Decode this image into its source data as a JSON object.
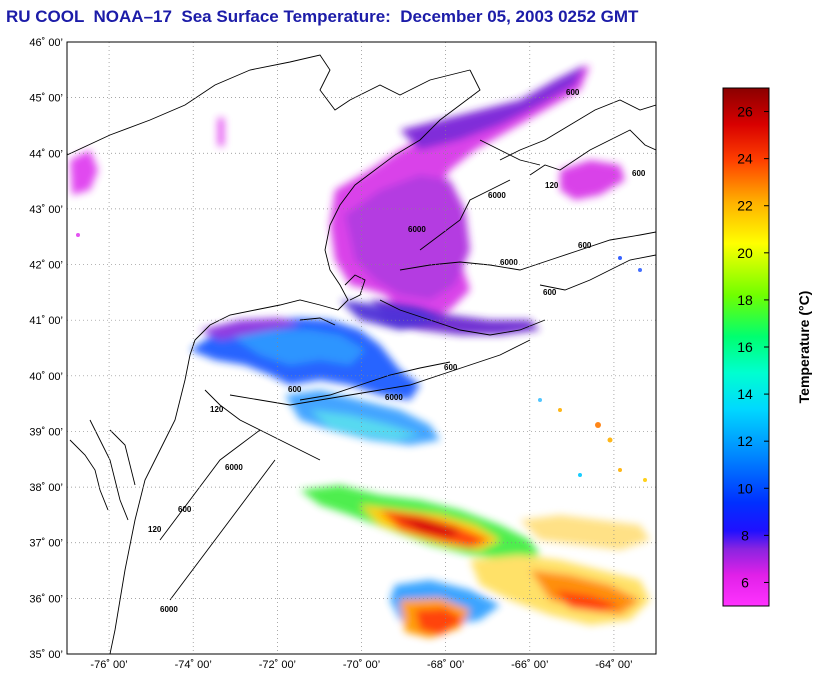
{
  "title": "RU COOL  NOAA–17  Sea Surface Temperature:  December 05, 2003 0252 GMT",
  "map": {
    "lat_labels": [
      "46˚ 00’",
      "45˚ 00’",
      "44˚ 00’",
      "43˚ 00’",
      "42˚ 00’",
      "41˚ 00’",
      "40˚ 00’",
      "39˚ 00’",
      "38˚ 00’",
      "37˚ 00’",
      "36˚ 00’",
      "35˚ 00’"
    ],
    "lon_labels": [
      "-76˚ 00’",
      "-74˚ 00’",
      "-72˚ 00’",
      "-70˚ 00’",
      "-68˚ 00’",
      "-66˚ 00’",
      "-64˚ 00’"
    ],
    "lat_values": [
      46,
      45,
      44,
      43,
      42,
      41,
      40,
      39,
      38,
      37,
      36,
      35
    ],
    "lon_values": [
      -76,
      -74,
      -72,
      -70,
      -68,
      -66,
      -64
    ],
    "lat_range": [
      35,
      46
    ],
    "lon_range": [
      -77,
      -63
    ],
    "grid": "dotted",
    "contour_labels": [
      "600",
      "120",
      "6000",
      "600",
      "600",
      "6000",
      "600",
      "600",
      "6000",
      "120",
      "6000",
      "600",
      "120",
      "6000",
      "600",
      "6000"
    ]
  },
  "colorbar": {
    "title": "Temperature (°C)",
    "ticks": [
      "26",
      "24",
      "22",
      "20",
      "18",
      "16",
      "14",
      "12",
      "10",
      "8",
      "6"
    ],
    "tick_values": [
      26,
      24,
      22,
      20,
      18,
      16,
      14,
      12,
      10,
      8,
      6
    ],
    "range": [
      5,
      27
    ],
    "colors": [
      "#ff00ff",
      "#c02ccc",
      "#7a1ee6",
      "#0000ff",
      "#0074ff",
      "#00cfff",
      "#00ffd8",
      "#00ff55",
      "#aaff00",
      "#ffff00",
      "#ffb000",
      "#ff4000",
      "#d80000",
      "#8b0000"
    ]
  }
}
